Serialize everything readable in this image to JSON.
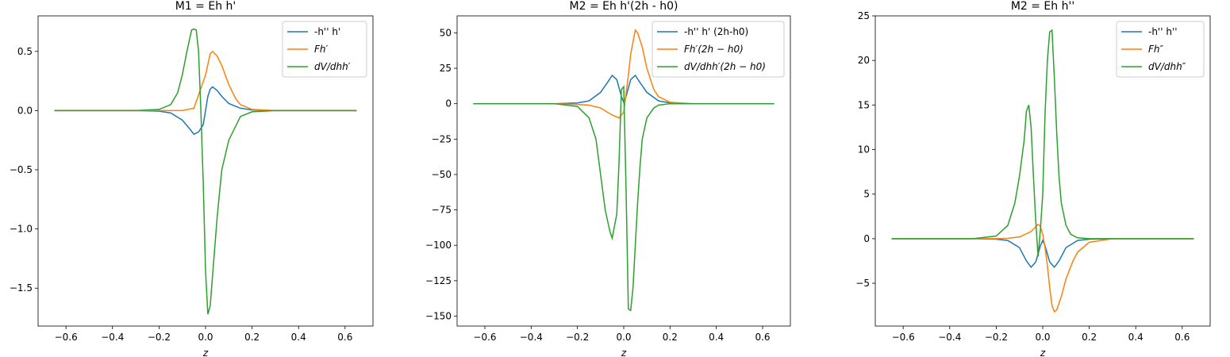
{
  "chart_data": [
    {
      "type": "line",
      "title": "M1 = Eh h'",
      "xlabel": "z",
      "xlim": [
        -0.72,
        0.72
      ],
      "ylim": [
        -1.82,
        0.8
      ],
      "xticks": [
        -0.6,
        -0.4,
        -0.2,
        0.0,
        0.2,
        0.4,
        0.6
      ],
      "xtick_labels": [
        "−0.6",
        "−0.4",
        "−0.2",
        "0.0",
        "0.2",
        "0.4",
        "0.6"
      ],
      "yticks": [
        -1.5,
        -1.0,
        -0.5,
        0.0,
        0.5
      ],
      "ytick_labels": [
        "−1.5",
        "−1.0",
        "−0.5",
        "0.0",
        "0.5"
      ],
      "legend_position": "upper right",
      "series": [
        {
          "name": "-h'' h'",
          "color": "#1f77b4",
          "x": [
            -0.65,
            -0.3,
            -0.2,
            -0.15,
            -0.1,
            -0.07,
            -0.05,
            -0.03,
            -0.01,
            0.0,
            0.01,
            0.02,
            0.03,
            0.05,
            0.07,
            0.1,
            0.15,
            0.2,
            0.3,
            0.65
          ],
          "y": [
            0,
            0,
            -0.005,
            -0.02,
            -0.08,
            -0.15,
            -0.2,
            -0.18,
            -0.12,
            0.0,
            0.12,
            0.18,
            0.2,
            0.17,
            0.12,
            0.06,
            0.02,
            0.005,
            0,
            0
          ]
        },
        {
          "name": "Fh′",
          "color": "#ff7f0e",
          "x": [
            -0.65,
            -0.3,
            -0.2,
            -0.15,
            -0.1,
            -0.05,
            0.0,
            0.02,
            0.03,
            0.05,
            0.07,
            0.1,
            0.13,
            0.15,
            0.2,
            0.3,
            0.65
          ],
          "y": [
            0,
            0,
            0,
            0,
            0,
            0.02,
            0.3,
            0.48,
            0.5,
            0.46,
            0.38,
            0.22,
            0.1,
            0.05,
            0.01,
            0,
            0
          ]
        },
        {
          "name": "dV/dhh′",
          "color": "#2ca02c",
          "x": [
            -0.65,
            -0.3,
            -0.2,
            -0.15,
            -0.12,
            -0.1,
            -0.08,
            -0.06,
            -0.05,
            -0.04,
            -0.03,
            -0.02,
            -0.01,
            0.0,
            0.01,
            0.02,
            0.03,
            0.05,
            0.07,
            0.1,
            0.15,
            0.2,
            0.3,
            0.65
          ],
          "y": [
            0,
            0,
            0.01,
            0.05,
            0.15,
            0.3,
            0.5,
            0.68,
            0.69,
            0.68,
            0.5,
            0.0,
            -0.6,
            -1.35,
            -1.72,
            -1.65,
            -1.4,
            -0.9,
            -0.5,
            -0.25,
            -0.05,
            -0.01,
            0,
            0
          ]
        }
      ]
    },
    {
      "type": "line",
      "title": "M2 = Eh h'(2h - h0)",
      "xlabel": "z",
      "xlim": [
        -0.72,
        0.72
      ],
      "ylim": [
        -157,
        62
      ],
      "xticks": [
        -0.6,
        -0.4,
        -0.2,
        0.0,
        0.2,
        0.4,
        0.6
      ],
      "xtick_labels": [
        "−0.6",
        "−0.4",
        "−0.2",
        "0.0",
        "0.2",
        "0.4",
        "0.6"
      ],
      "yticks": [
        -150,
        -125,
        -100,
        -75,
        -50,
        -25,
        0,
        25,
        50
      ],
      "ytick_labels": [
        "−150",
        "−125",
        "−100",
        "−75",
        "−50",
        "−25",
        "0",
        "25",
        "50"
      ],
      "legend_position": "upper right",
      "series": [
        {
          "name": "-h'' h' (2h-h0)",
          "color": "#1f77b4",
          "x": [
            -0.65,
            -0.3,
            -0.2,
            -0.15,
            -0.1,
            -0.07,
            -0.05,
            -0.03,
            -0.01,
            0.0,
            0.01,
            0.03,
            0.05,
            0.07,
            0.1,
            0.15,
            0.2,
            0.3,
            0.65
          ],
          "y": [
            0,
            0,
            0.5,
            2,
            8,
            15,
            20,
            17,
            5,
            1,
            5,
            17,
            20,
            15,
            8,
            2,
            0.5,
            0,
            0
          ]
        },
        {
          "name": "Fh′(2h − h0)",
          "color": "#ff7f0e",
          "x": [
            -0.65,
            -0.3,
            -0.2,
            -0.15,
            -0.1,
            -0.05,
            -0.02,
            0.0,
            0.02,
            0.03,
            0.05,
            0.06,
            0.08,
            0.1,
            0.13,
            0.15,
            0.2,
            0.3,
            0.65
          ],
          "y": [
            0,
            0,
            -0.5,
            -1,
            -3,
            -8,
            -10,
            -6,
            20,
            35,
            52,
            50,
            40,
            25,
            10,
            5,
            1,
            0,
            0
          ]
        },
        {
          "name": "dV/dhh′(2h − h0)",
          "color": "#2ca02c",
          "x": [
            -0.65,
            -0.3,
            -0.2,
            -0.15,
            -0.12,
            -0.1,
            -0.08,
            -0.06,
            -0.05,
            -0.03,
            -0.02,
            -0.01,
            0.0,
            0.01,
            0.02,
            0.03,
            0.04,
            0.05,
            0.06,
            0.07,
            0.08,
            0.1,
            0.13,
            0.15,
            0.2,
            0.3,
            0.65
          ],
          "y": [
            0,
            0,
            -2,
            -10,
            -25,
            -50,
            -75,
            -90,
            -95,
            -78,
            -40,
            10,
            12,
            -60,
            -145,
            -146,
            -130,
            -100,
            -70,
            -45,
            -25,
            -10,
            -3,
            -1,
            0,
            0,
            0
          ]
        }
      ]
    },
    {
      "type": "line",
      "title": "M2 = Eh h''",
      "xlabel": "z",
      "xlim": [
        -0.72,
        0.72
      ],
      "ylim": [
        -9.8,
        25
      ],
      "xticks": [
        -0.6,
        -0.4,
        -0.2,
        0.0,
        0.2,
        0.4,
        0.6
      ],
      "xtick_labels": [
        "−0.6",
        "−0.4",
        "−0.2",
        "0.0",
        "0.2",
        "0.4",
        "0.6"
      ],
      "yticks": [
        -5,
        0,
        5,
        10,
        15,
        20,
        25
      ],
      "ytick_labels": [
        "−5",
        "0",
        "5",
        "10",
        "15",
        "20",
        "25"
      ],
      "legend_position": "upper right",
      "series": [
        {
          "name": "-h'' h''",
          "color": "#1f77b4",
          "x": [
            -0.65,
            -0.3,
            -0.2,
            -0.15,
            -0.1,
            -0.07,
            -0.05,
            -0.03,
            -0.01,
            0.0,
            0.01,
            0.03,
            0.05,
            0.07,
            0.1,
            0.15,
            0.2,
            0.3,
            0.65
          ],
          "y": [
            0,
            0,
            -0.05,
            -0.2,
            -1,
            -2.5,
            -3.2,
            -2.6,
            -0.8,
            -0.2,
            -0.8,
            -2.6,
            -3.2,
            -2.5,
            -1,
            -0.2,
            -0.05,
            0,
            0
          ]
        },
        {
          "name": "Fh″",
          "color": "#ff7f0e",
          "x": [
            -0.65,
            -0.3,
            -0.2,
            -0.15,
            -0.1,
            -0.05,
            -0.02,
            -0.01,
            0.0,
            0.01,
            0.02,
            0.03,
            0.04,
            0.05,
            0.06,
            0.08,
            0.1,
            0.13,
            0.15,
            0.2,
            0.3,
            0.65
          ],
          "y": [
            0,
            0,
            0,
            0.05,
            0.2,
            0.8,
            1.6,
            1.4,
            0.5,
            -1,
            -3,
            -5.5,
            -7.5,
            -8.2,
            -8,
            -6.5,
            -4.5,
            -2.5,
            -1.5,
            -0.4,
            0,
            0
          ]
        },
        {
          "name": "dV/dhh″",
          "color": "#2ca02c",
          "x": [
            -0.65,
            -0.3,
            -0.2,
            -0.15,
            -0.12,
            -0.1,
            -0.08,
            -0.07,
            -0.06,
            -0.05,
            -0.04,
            -0.03,
            -0.02,
            -0.01,
            0.0,
            0.01,
            0.02,
            0.03,
            0.04,
            0.05,
            0.06,
            0.07,
            0.08,
            0.1,
            0.12,
            0.15,
            0.2,
            0.3,
            0.65
          ],
          "y": [
            0,
            0,
            0.3,
            1.5,
            4,
            7,
            11,
            14.3,
            15,
            12.5,
            7,
            2,
            -2,
            1,
            5,
            14,
            20,
            23.2,
            23.4,
            18,
            12,
            7,
            4,
            1.5,
            0.5,
            0.1,
            0,
            0,
            0
          ]
        }
      ]
    }
  ]
}
